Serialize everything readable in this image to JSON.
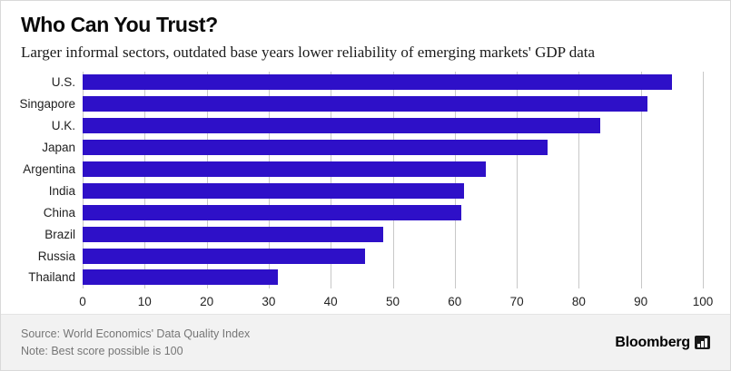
{
  "header": {
    "title": "Who Can You Trust?",
    "subtitle": "Larger informal sectors, outdated base years lower reliability of emerging markets' GDP data"
  },
  "chart_data": {
    "type": "bar",
    "orientation": "horizontal",
    "title": "Who Can You Trust?",
    "subtitle": "Larger informal sectors, outdated base years lower reliability of emerging markets' GDP data",
    "categories": [
      "U.S.",
      "Singapore",
      "U.K.",
      "Japan",
      "Argentina",
      "India",
      "China",
      "Brazil",
      "Russia",
      "Thailand"
    ],
    "values": [
      95,
      91,
      83.5,
      75,
      65,
      61.5,
      61,
      48.5,
      45.5,
      31.5
    ],
    "xlim": [
      0,
      100
    ],
    "ticks": [
      0,
      10,
      20,
      30,
      40,
      50,
      60,
      70,
      80,
      90,
      100
    ],
    "bar_color": "#2e10c8",
    "grid": true,
    "legend": "none"
  },
  "footer": {
    "source": "Source: World Economics' Data Quality Index",
    "note": "Note: Best score possible is 100",
    "brand": "Bloomberg"
  }
}
